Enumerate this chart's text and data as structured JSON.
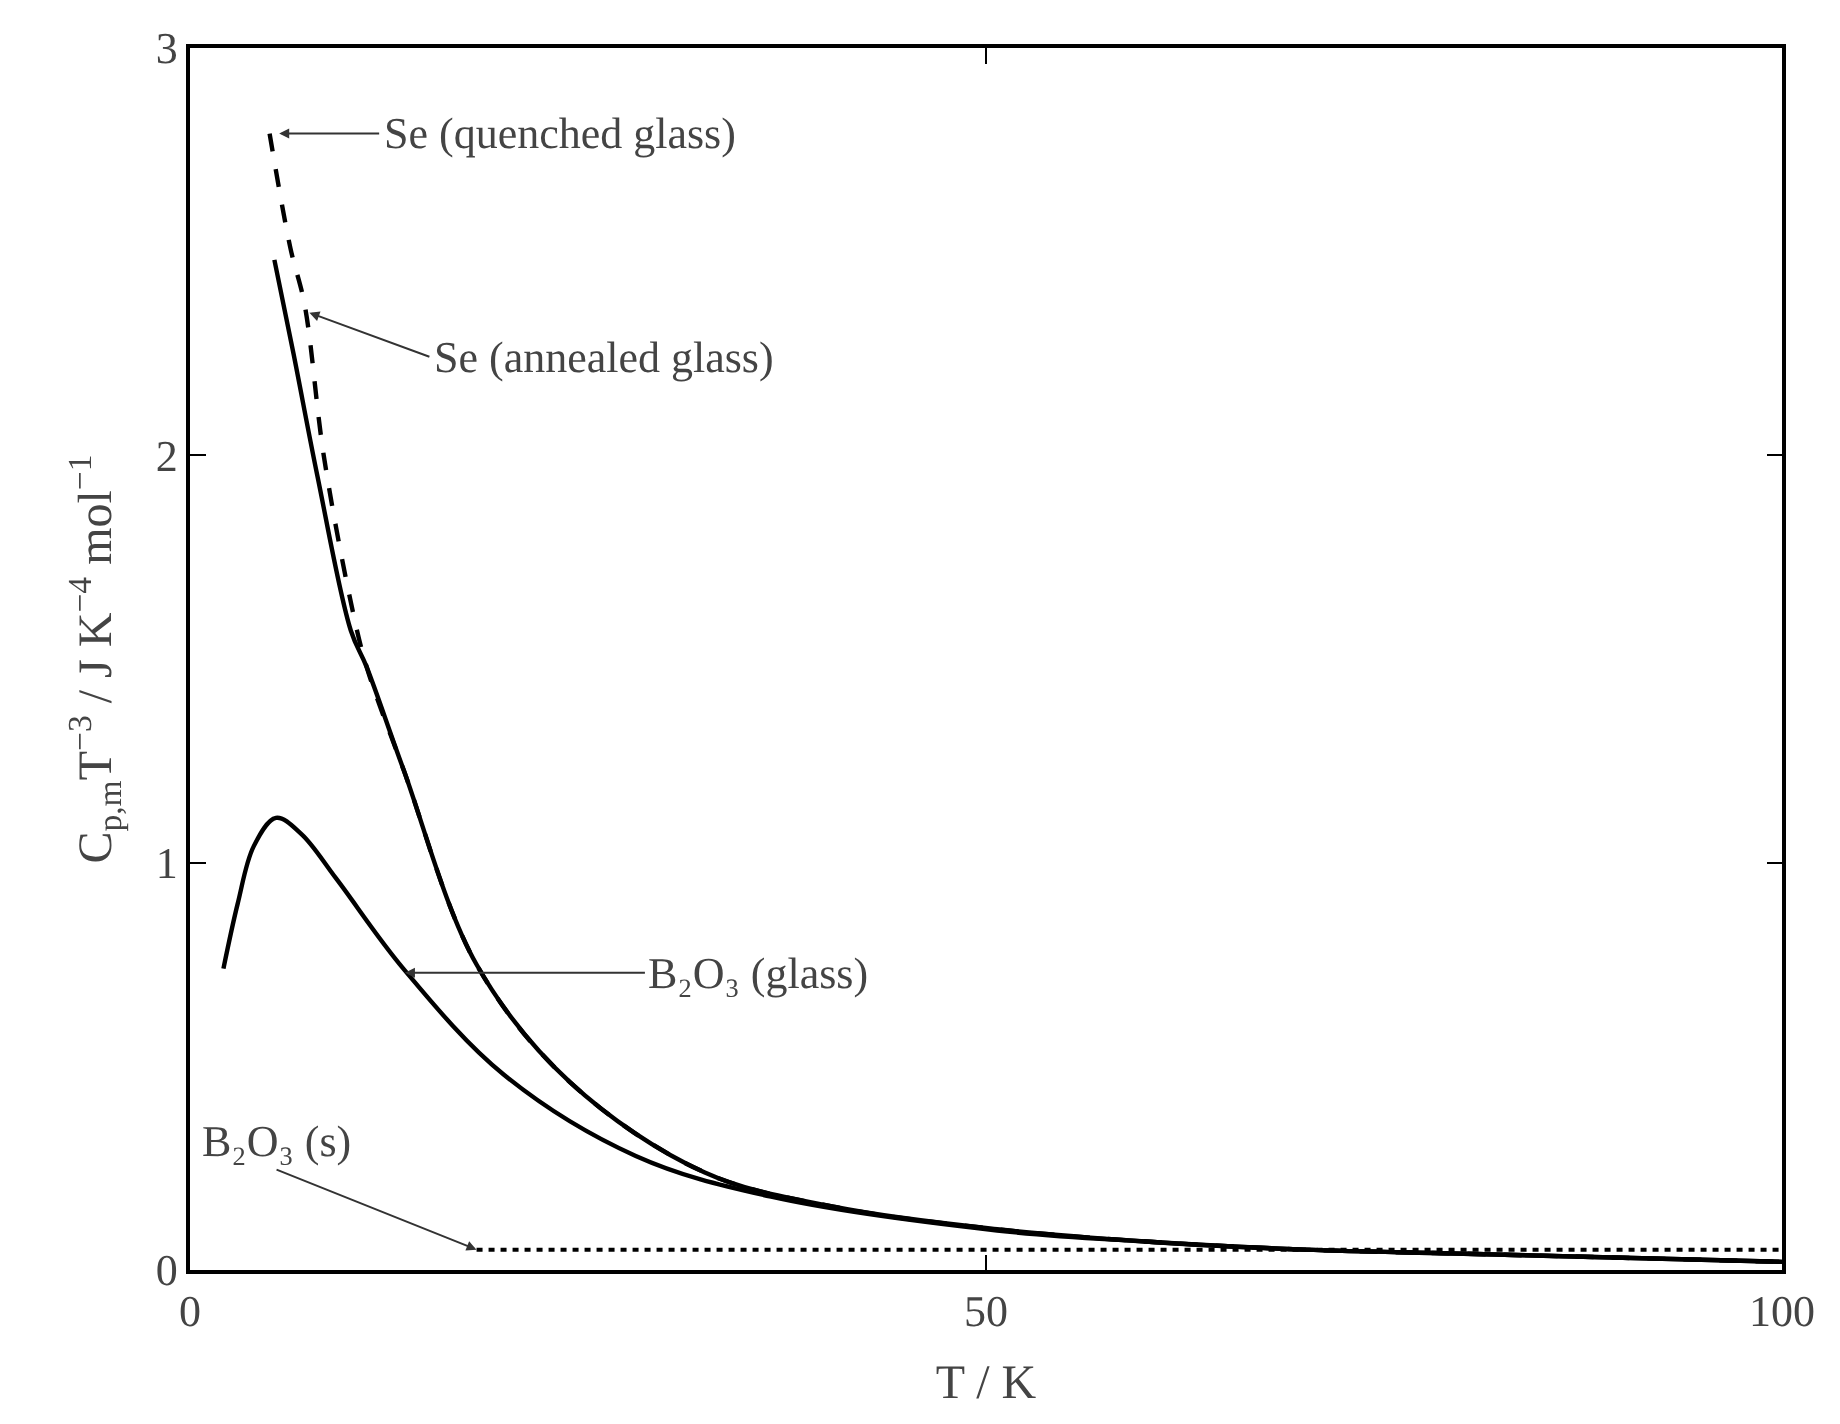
{
  "chart_data": {
    "type": "line",
    "xlabel": "T / K",
    "ylabel": "C$_{p,m}$T$^{−3}$ / J K$^{−4}$ mol$^{−1}$",
    "xlim": [
      0,
      100
    ],
    "ylim": [
      0,
      3
    ],
    "xticks": [
      0,
      50,
      100
    ],
    "yticks": [
      0,
      1,
      2,
      3
    ],
    "series": [
      {
        "color": "#000000",
        "line_style": "dashed",
        "x": [
          5.0,
          6.3,
          7.2,
          8.4,
          10.1,
          11.1,
          13.4,
          18,
          23.9,
          32.3,
          40.6,
          50.7,
          60,
          70,
          80,
          90,
          100
        ],
        "values": [
          2.79,
          2.51,
          2.37,
          2.0,
          1.64,
          1.48,
          1.23,
          0.75,
          0.46,
          0.24,
          0.154,
          0.1,
          0.07,
          0.05,
          0.04,
          0.03,
          0.02
        ]
      },
      {
        "color": "#000000",
        "line_style": "solid",
        "x": [
          5.3,
          6.5,
          8,
          10.1,
          11.1,
          13.4,
          18,
          23.9,
          32.3,
          40.6,
          50.7,
          60,
          70,
          80,
          90,
          100
        ],
        "values": [
          2.48,
          2.25,
          1.95,
          1.57,
          1.48,
          1.23,
          0.75,
          0.46,
          0.24,
          0.154,
          0.1,
          0.07,
          0.05,
          0.04,
          0.03,
          0.02
        ]
      },
      {
        "color": "#000000",
        "line_style": "solid",
        "x": [
          2.1,
          3,
          4,
          5.4,
          7,
          9.2,
          13.4,
          19.7,
          28,
          36.5,
          50.7,
          60,
          70,
          80,
          90,
          100
        ],
        "values": [
          0.74,
          0.9,
          1.04,
          1.11,
          1.07,
          0.96,
          0.74,
          0.48,
          0.28,
          0.18,
          0.097,
          0.07,
          0.05,
          0.04,
          0.03,
          0.02
        ]
      },
      {
        "color": "#000000",
        "line_style": "dotted",
        "x": [
          18,
          100
        ],
        "values": [
          0.05,
          0.05
        ]
      }
    ],
    "annotations": [
      {
        "text": "Se (quenched glass)",
        "x": 5.6,
        "y": 2.79
      },
      {
        "text": "Se (annealed glass)",
        "x": 7.5,
        "y": 2.35
      },
      {
        "text": "B₂O₃ (glass)",
        "x": 13.5,
        "y": 0.73
      },
      {
        "text": "B₂O₃ (s)",
        "x": 18,
        "y": 0.05
      }
    ]
  }
}
